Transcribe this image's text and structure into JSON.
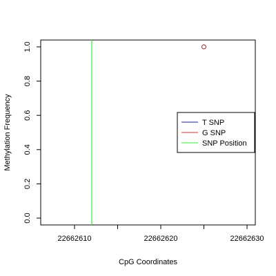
{
  "chart_data": {
    "type": "scatter",
    "x_label": "CpG Coordinates",
    "y_label": "Methylation Frequency",
    "xlim": [
      22662606.08,
      22662630.96
    ],
    "ylim": [
      -0.04,
      1.04
    ],
    "xticks": [
      22662610,
      22662620,
      22662630
    ],
    "xminor_ticks": [
      22662615,
      22662625
    ],
    "yticks": [
      {
        "value": 0,
        "label": "0.0"
      },
      {
        "value": 0.2,
        "label": "0.2"
      },
      {
        "value": 0.4,
        "label": "0.4"
      },
      {
        "value": 0.6,
        "label": "0.6"
      },
      {
        "value": 0.8,
        "label": "0.8"
      },
      {
        "value": 1,
        "label": "1.0"
      }
    ],
    "points": {
      "x": [
        22662625
      ],
      "values": [
        1
      ],
      "color": "#9b1b30"
    },
    "snp_positions": [
      22662612
    ],
    "legend": [
      {
        "name": "T SNP",
        "color": "#1a1a8c"
      },
      {
        "name": "G SNP",
        "color": "#e03030"
      },
      {
        "name": "SNP Position",
        "color": "#33ee33"
      }
    ]
  }
}
